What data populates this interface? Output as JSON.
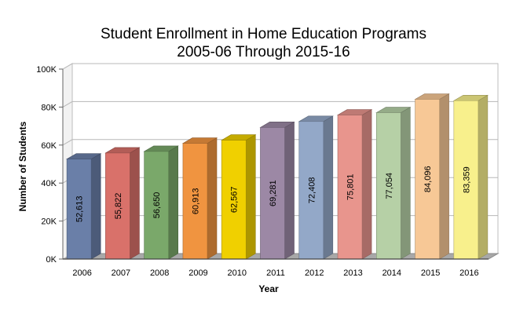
{
  "chart_data": {
    "type": "bar",
    "title_lines": [
      "Student Enrollment in Home Education Programs",
      "2005-06 Through 2015-16"
    ],
    "xlabel": "Year",
    "ylabel": "Number of Students",
    "ylim": [
      0,
      100000
    ],
    "y_ticks": [
      {
        "value": 0,
        "label": "0K"
      },
      {
        "value": 20000,
        "label": "20K"
      },
      {
        "value": 40000,
        "label": "40K"
      },
      {
        "value": 60000,
        "label": "60K"
      },
      {
        "value": 80000,
        "label": "80K"
      },
      {
        "value": 100000,
        "label": "100K"
      }
    ],
    "grid": true,
    "categories": [
      "2006",
      "2007",
      "2008",
      "2009",
      "2010",
      "2011",
      "2012",
      "2013",
      "2014",
      "2015",
      "2016"
    ],
    "values": [
      52613,
      55822,
      56650,
      60913,
      62567,
      69281,
      72408,
      75801,
      77054,
      84096,
      83359
    ],
    "data_labels": [
      "52,613",
      "55,822",
      "56,650",
      "60,913",
      "62,567",
      "69,281",
      "72,408",
      "75,801",
      "77,054",
      "84,096",
      "83,359"
    ],
    "colors": [
      "#6a7fa8",
      "#d9716a",
      "#7aa86a",
      "#f09440",
      "#f0d000",
      "#9c88a5",
      "#93a8c8",
      "#e8958d",
      "#b6d0a6",
      "#f7c896",
      "#f8f08c"
    ]
  }
}
